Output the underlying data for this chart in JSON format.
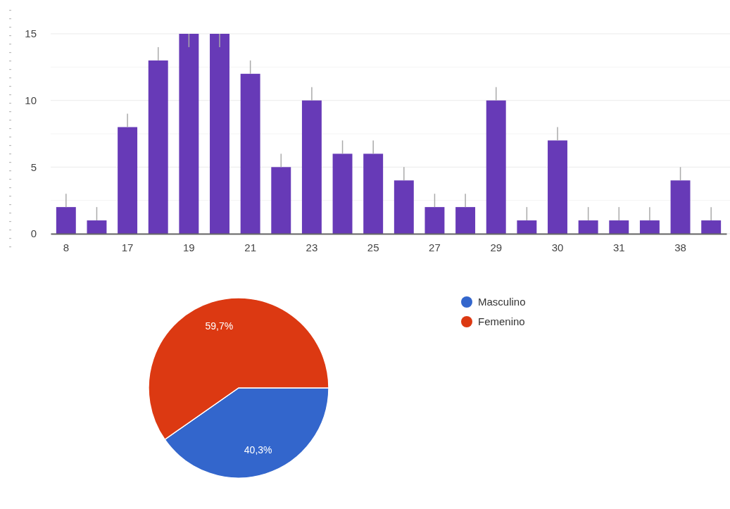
{
  "chart_data": [
    {
      "type": "bar",
      "categories": [
        "8",
        null,
        "17",
        null,
        "19",
        null,
        "21",
        null,
        "23",
        null,
        "25",
        null,
        "27",
        null,
        "29",
        null,
        "30",
        null,
        "31",
        null,
        "38",
        null
      ],
      "values": [
        2,
        1,
        8,
        13,
        15,
        15,
        12,
        5,
        10,
        6,
        6,
        4,
        2,
        2,
        10,
        1,
        7,
        1,
        1,
        1,
        4,
        1
      ],
      "errors": [
        [
          2,
          3
        ],
        [
          1,
          2
        ],
        [
          8,
          9
        ],
        [
          13,
          14
        ],
        [
          14,
          15
        ],
        [
          14,
          15
        ],
        [
          12,
          13
        ],
        [
          5,
          6
        ],
        [
          10,
          11
        ],
        [
          6,
          7
        ],
        [
          6,
          7
        ],
        [
          4,
          5
        ],
        [
          2,
          3
        ],
        [
          2,
          3
        ],
        [
          10,
          11
        ],
        [
          1,
          2
        ],
        [
          7,
          8
        ],
        [
          1,
          2
        ],
        [
          1,
          2
        ],
        [
          1,
          2
        ],
        [
          4,
          5
        ],
        [
          1,
          2
        ]
      ],
      "color": "#673ab7",
      "ylim": [
        0,
        15
      ],
      "yticks": [
        0,
        {
          "value": 2.5,
          "label": null
        },
        5,
        {
          "value": 7.5,
          "label": null
        },
        10,
        {
          "value": 12.5,
          "label": null
        },
        15
      ],
      "grid": true
    },
    {
      "type": "pie",
      "categories": [
        "Masculino",
        "Femenino"
      ],
      "values": [
        40.3,
        59.7
      ],
      "colors": [
        "#3366cc",
        "#dc3912"
      ],
      "value_labels": [
        "40,3%",
        "59,7%"
      ],
      "legend": "right"
    }
  ]
}
